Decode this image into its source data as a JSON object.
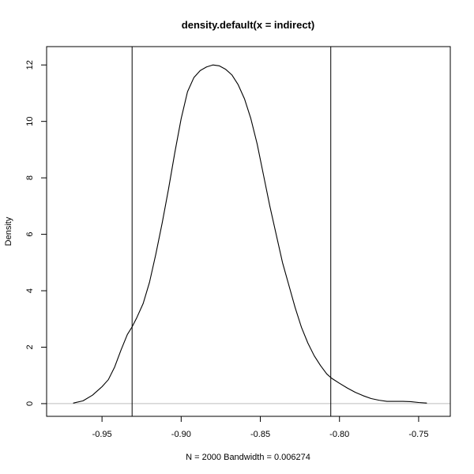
{
  "chart_data": {
    "type": "line",
    "title": "density.default(x = indirect)",
    "xlabel": "N = 2000   Bandwidth = 0.006274",
    "ylabel": "Density",
    "xlim": [
      -0.985,
      -0.73
    ],
    "ylim": [
      -0.45,
      12.65
    ],
    "x_ticks": [
      {
        "value": -0.95,
        "label": "-0.95"
      },
      {
        "value": -0.9,
        "label": "-0.90"
      },
      {
        "value": -0.85,
        "label": "-0.85"
      },
      {
        "value": -0.8,
        "label": "-0.80"
      },
      {
        "value": -0.75,
        "label": "-0.75"
      }
    ],
    "y_ticks": [
      {
        "value": 0,
        "label": "0"
      },
      {
        "value": 2,
        "label": "2"
      },
      {
        "value": 4,
        "label": "4"
      },
      {
        "value": 6,
        "label": "6"
      },
      {
        "value": 8,
        "label": "8"
      },
      {
        "value": 10,
        "label": "10"
      },
      {
        "value": 12,
        "label": "12"
      }
    ],
    "grid": false,
    "baseline": {
      "y": 0,
      "color": "#bebebe"
    },
    "vertical_lines": [
      {
        "x": -0.931
      },
      {
        "x": -0.8055
      }
    ],
    "series": [
      {
        "color": "#000000",
        "x": [
          -0.968,
          -0.962,
          -0.956,
          -0.95,
          -0.946,
          -0.942,
          -0.938,
          -0.934,
          -0.931,
          -0.928,
          -0.924,
          -0.92,
          -0.916,
          -0.912,
          -0.908,
          -0.904,
          -0.9,
          -0.896,
          -0.892,
          -0.888,
          -0.884,
          -0.88,
          -0.876,
          -0.872,
          -0.868,
          -0.864,
          -0.86,
          -0.856,
          -0.852,
          -0.848,
          -0.844,
          -0.84,
          -0.836,
          -0.832,
          -0.828,
          -0.824,
          -0.82,
          -0.816,
          -0.812,
          -0.808,
          -0.805,
          -0.8,
          -0.795,
          -0.79,
          -0.785,
          -0.78,
          -0.775,
          -0.77,
          -0.765,
          -0.76,
          -0.755,
          -0.75,
          -0.745
        ],
        "y": [
          0.02,
          0.1,
          0.3,
          0.6,
          0.85,
          1.3,
          1.9,
          2.45,
          2.72,
          3.05,
          3.55,
          4.3,
          5.3,
          6.4,
          7.6,
          8.9,
          10.1,
          11.05,
          11.55,
          11.8,
          11.93,
          12.0,
          11.97,
          11.85,
          11.65,
          11.3,
          10.8,
          10.1,
          9.2,
          8.1,
          7.0,
          6.0,
          5.0,
          4.2,
          3.4,
          2.7,
          2.15,
          1.7,
          1.35,
          1.05,
          0.9,
          0.72,
          0.55,
          0.4,
          0.28,
          0.18,
          0.12,
          0.08,
          0.08,
          0.08,
          0.07,
          0.04,
          0.02
        ]
      }
    ]
  }
}
